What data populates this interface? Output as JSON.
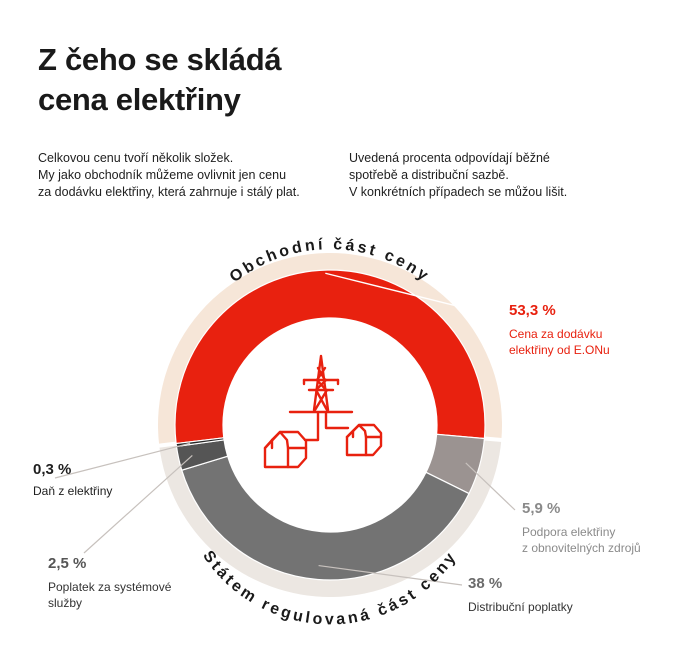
{
  "title": {
    "line1": "Z čeho se skládá",
    "line2": "cena elektřiny"
  },
  "intro_left": [
    "Celkovou cenu tvoří několik složek.",
    "My jako obchodník můžeme ovlivnit jen cenu",
    "za dodávku elektřiny, která zahrnuje i stálý plat."
  ],
  "intro_right": [
    "Uvedená procenta odpovídají běžné",
    "spotřebě a distribuční sazbě.",
    "V konkrétních případech se můžou lišit."
  ],
  "colors": {
    "eon_red": "#e8210f",
    "commercial_ring": "#f6e6d8",
    "regulated_ring": "#ece7e2",
    "renewables": "#9b9391",
    "distribution": "#737373",
    "system_services": "#555555",
    "electricity_tax": "#262626",
    "label_gray": "#8a8a8a",
    "label_dark": "#333333"
  },
  "chart_data": {
    "type": "pie",
    "variant": "donut",
    "groups": [
      {
        "name": "Obchodní část ceny",
        "components": [
          "Cena za dodávku elektřiny od E.ONu"
        ]
      },
      {
        "name": "Státem regulovaná část ceny",
        "components": [
          "Podpora elektřiny z obnovitelných zdrojů",
          "Distribuční poplatky",
          "Poplatek za systémové služby",
          "Daň z elektřiny"
        ]
      }
    ],
    "slices": [
      {
        "label": "53,3 %",
        "name_lines": [
          "Cena za dodávku",
          "elektřiny od E.ONu"
        ],
        "value": 53.3,
        "color": "#e8210f",
        "label_color": "#e8210f",
        "group": 0
      },
      {
        "label": "5,9 %",
        "name_lines": [
          "Podpora elektřiny",
          "z obnovitelných zdrojů"
        ],
        "value": 5.9,
        "color": "#9b9391",
        "label_color": "#8a8a8a",
        "group": 1
      },
      {
        "label": "38 %",
        "name_lines": [
          "Distribuční poplatky"
        ],
        "value": 38.0,
        "color": "#737373",
        "label_color": "#333333",
        "group": 1
      },
      {
        "label": "2,5 %",
        "name_lines": [
          "Poplatek za systémové",
          "služby"
        ],
        "value": 2.5,
        "color": "#555555",
        "label_color": "#333333",
        "group": 1
      },
      {
        "label": "0,3 %",
        "name_lines": [
          "Daň z elektřiny"
        ],
        "value": 0.3,
        "color": "#262626",
        "label_color": "#1e1e1e",
        "group": 1
      }
    ],
    "center_icon": "power-pylon-and-houses-icon"
  }
}
